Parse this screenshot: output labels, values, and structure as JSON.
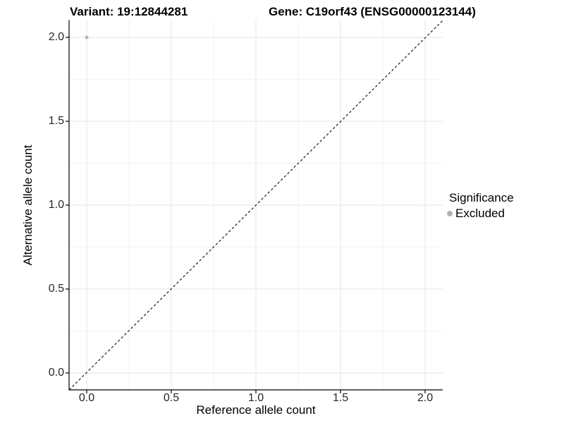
{
  "header": {
    "variant_title": "Variant: 19:12844281",
    "gene_title": "Gene: C19orf43 (ENSG00000123144)"
  },
  "axes": {
    "x_label": "Reference allele count",
    "y_label": "Alternative allele count"
  },
  "legend": {
    "title": "Significance",
    "entries": [
      {
        "label": "Excluded",
        "color": "#b3b3b3",
        "marker": "circle-icon"
      }
    ]
  },
  "chart_data": {
    "type": "scatter",
    "title": "Variant: 19:12844281 | Gene: C19orf43 (ENSG00000123144)",
    "xlabel": "Reference allele count",
    "ylabel": "Alternative allele count",
    "xlim": [
      -0.1,
      2.1
    ],
    "ylim": [
      -0.1,
      2.1
    ],
    "x_ticks": [
      "0.0",
      "0.5",
      "1.0",
      "1.5",
      "2.0"
    ],
    "y_ticks_top_to_bottom": [
      "2.0",
      "1.5",
      "1.0",
      "0.5",
      "0.0"
    ],
    "grid": "major and minor gridlines, light grey on white",
    "legend_position": "right",
    "reference_line": {
      "type": "identity",
      "slope": 1,
      "intercept": 0,
      "style": "dashed",
      "color": "#000000"
    },
    "series": [
      {
        "name": "Excluded",
        "color": "#b3b3b3",
        "points": [
          {
            "x": 0,
            "y": 2
          }
        ]
      }
    ]
  },
  "colors": {
    "background": "#ffffff",
    "grid_major": "#e4e4e4",
    "grid_minor": "#f2f2f2",
    "axis": "#000000",
    "tick_text": "#262626",
    "point": "#b3b3b3"
  }
}
